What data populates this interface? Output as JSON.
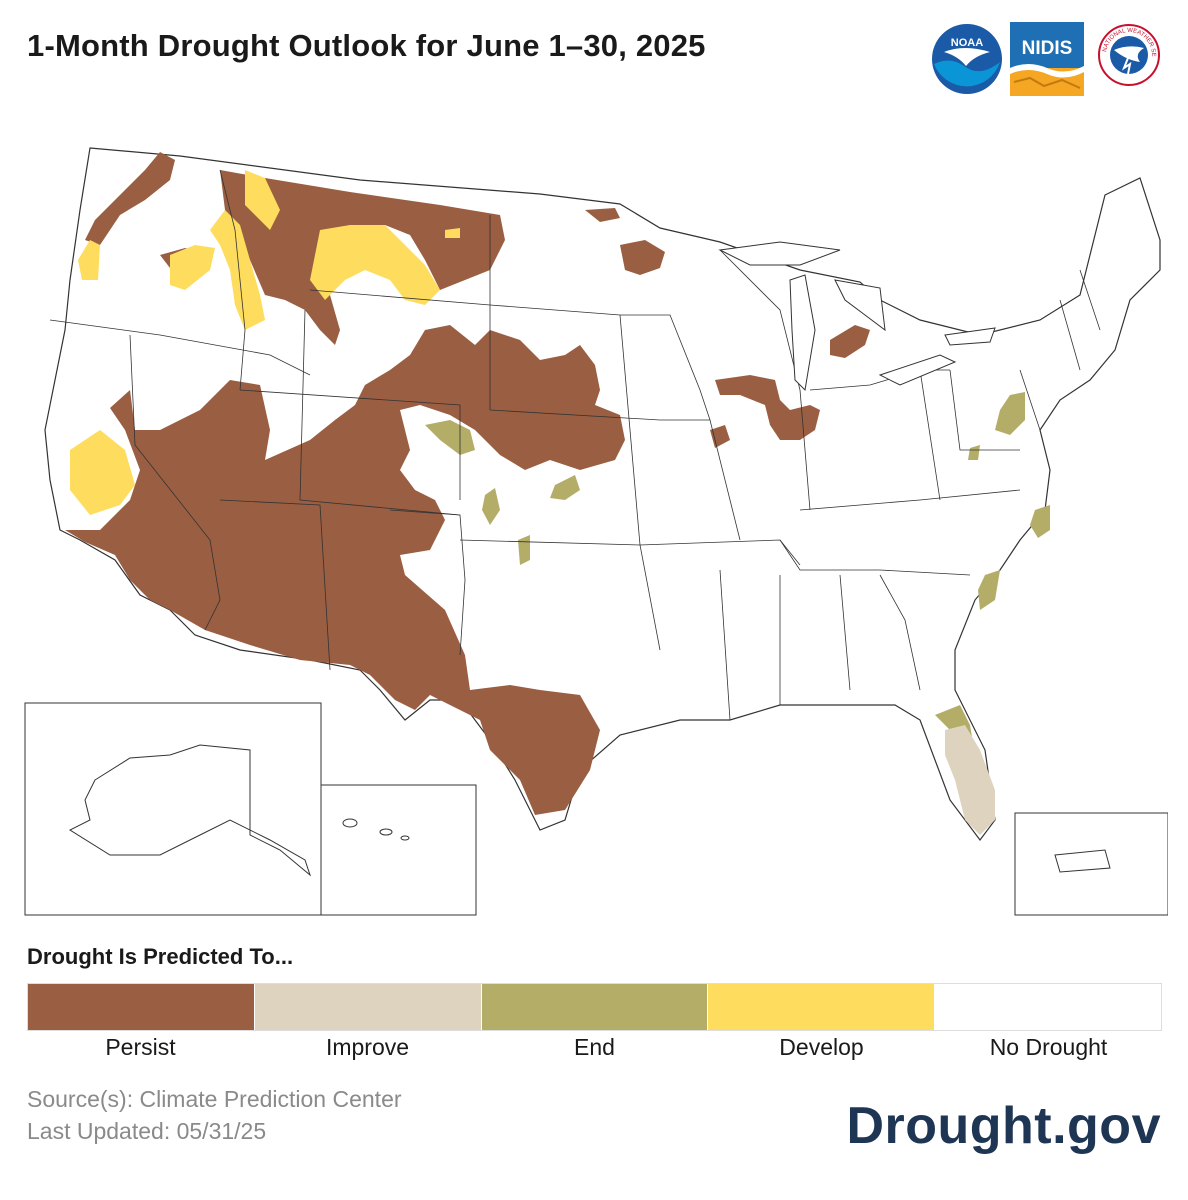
{
  "title": "1-Month Drought Outlook for June 1–30, 2025",
  "logos": [
    {
      "name": "noaa-logo",
      "text": "NOAA"
    },
    {
      "name": "nidis-logo",
      "text": "NIDIS"
    },
    {
      "name": "nws-logo",
      "text": "NATIONAL WEATHER SERVICE"
    }
  ],
  "colors": {
    "persist": "#9a5e42",
    "improve": "#ddd3bf",
    "end": "#b3ad68",
    "develop": "#fedc5d",
    "no_drought": "#ffffff",
    "border": "#333333",
    "brand": "#1e3553"
  },
  "legend": {
    "title": "Drought Is Predicted To...",
    "items": [
      {
        "label": "Persist",
        "color": "#9a5e42"
      },
      {
        "label": "Improve",
        "color": "#ddd3bf"
      },
      {
        "label": "End",
        "color": "#b3ad68"
      },
      {
        "label": "Develop",
        "color": "#fedc5d"
      },
      {
        "label": "No Drought",
        "color": "#ffffff"
      }
    ]
  },
  "footer": {
    "source": "Source(s): Climate Prediction Center",
    "updated": "Last Updated: 05/31/25",
    "brand": "Drought.gov"
  }
}
